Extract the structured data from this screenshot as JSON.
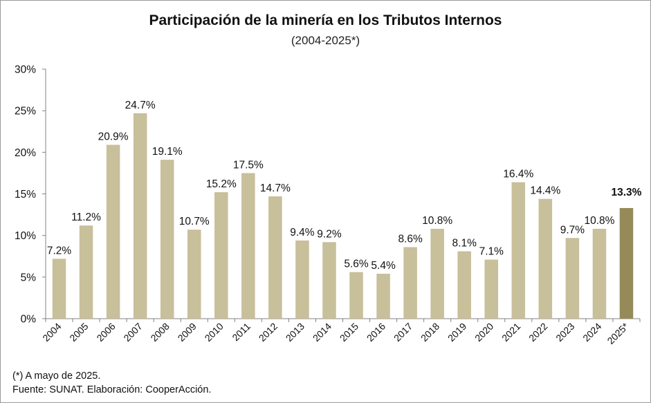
{
  "chart_data": {
    "type": "bar",
    "title": "Participación de la minería en los Tributos Internos",
    "subtitle": "(2004-2025*)",
    "categories": [
      "2004",
      "2005",
      "2006",
      "2007",
      "2008",
      "2009",
      "2010",
      "2011",
      "2012",
      "2013",
      "2014",
      "2015",
      "2016",
      "2017",
      "2018",
      "2019",
      "2020",
      "2021",
      "2022",
      "2023",
      "2024",
      "2025*"
    ],
    "values": [
      7.2,
      11.2,
      20.9,
      24.7,
      19.1,
      10.7,
      15.2,
      17.5,
      14.7,
      9.4,
      9.2,
      5.6,
      5.4,
      8.6,
      10.8,
      8.1,
      7.1,
      16.4,
      14.4,
      9.7,
      10.8,
      13.3
    ],
    "data_labels": [
      "7.2%",
      "11.2%",
      "20.9%",
      "24.7%",
      "19.1%",
      "10.7%",
      "15.2%",
      "17.5%",
      "14.7%",
      "9.4%",
      "9.2%",
      "5.6%",
      "5.4%",
      "8.6%",
      "10.8%",
      "8.1%",
      "7.1%",
      "16.4%",
      "14.4%",
      "9.7%",
      "10.8%",
      "13.3%"
    ],
    "highlight_index": 21,
    "y_ticks": [
      0,
      5,
      10,
      15,
      20,
      25,
      30
    ],
    "y_tick_labels": [
      "0%",
      "5%",
      "10%",
      "15%",
      "20%",
      "25%",
      "30%"
    ],
    "ylim": [
      0,
      30
    ],
    "xlabel": "",
    "ylabel": "",
    "grid": false,
    "legend": "none",
    "colors": {
      "bar": "#c8bf9b",
      "highlight": "#958a58"
    }
  },
  "notes": {
    "footnote": "(*) A mayo de 2025.",
    "source": "Fuente: SUNAT. Elaboración: CooperAcción."
  }
}
